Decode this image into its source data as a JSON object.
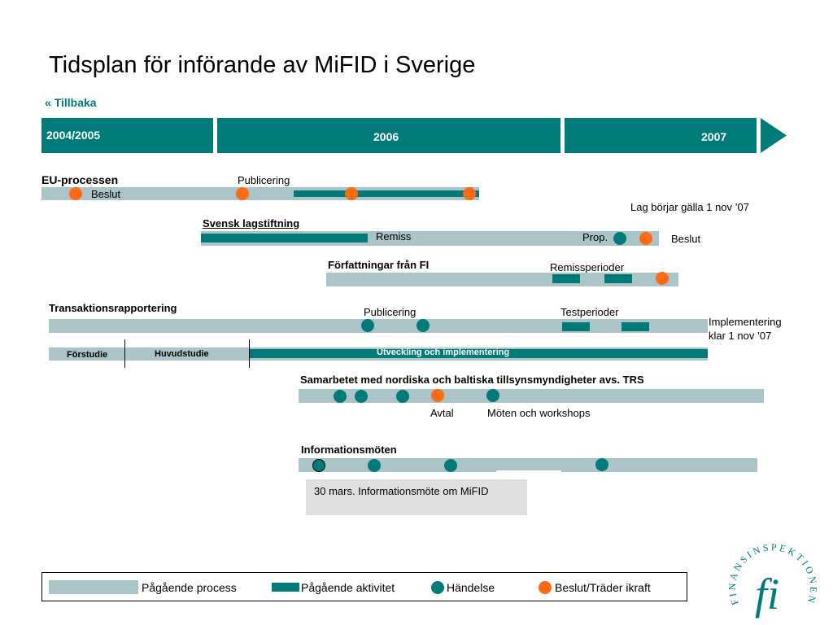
{
  "title": "Tidsplan för införande av MiFID i Sverige",
  "back_link": {
    "icon": "«",
    "label": "Tillbaka"
  },
  "years": {
    "y2004_2005": "2004/2005",
    "y2006": "2006",
    "y2007": "2007"
  },
  "eu": {
    "heading": "EU-processen",
    "publicering": "Publicering",
    "beslut": "Beslut",
    "lag_note": "Lag börjar gälla 1 nov ’07"
  },
  "svensk": {
    "heading": "Svensk lagstiftning",
    "remiss": "Remiss",
    "prop": "Prop.",
    "beslut": "Beslut"
  },
  "forfattningar": {
    "heading": "Författningar från FI",
    "remissperioder": "Remissperioder"
  },
  "transaktion": {
    "heading": "Transaktionsrapportering",
    "publicering": "Publicering",
    "testperioder": "Testperioder",
    "impl_line1": "Implementering",
    "impl_line2": "klar 1 nov ’07",
    "forstudie": "Förstudie",
    "huvudstudie": "Huvudstudie",
    "utveckling": "Utveckling och implementering"
  },
  "samarbete": {
    "heading": "Samarbetet med nordiska och baltiska tillsynsmyndigheter avs. TRS",
    "avtal": "Avtal",
    "moten": "Möten och workshops"
  },
  "info": {
    "heading": "Informationsmöten",
    "callout": "30 mars. Informationsmöte om MiFID"
  },
  "legend": {
    "process": "Pågående process",
    "aktivitet": "Pågående aktivitet",
    "handelse": "Händelse",
    "beslut": "Beslut/Träder ikraft"
  },
  "logo": {
    "text": "FINANSINSPEKTIONEN",
    "mark": "fi"
  },
  "colors": {
    "teal": "#007b7a",
    "grey": "#aac4c8",
    "orange": "#ff6a13"
  }
}
